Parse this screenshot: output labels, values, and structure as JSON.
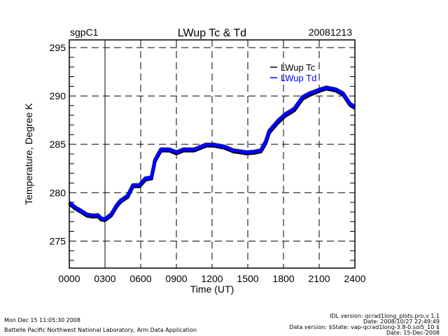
{
  "chart_data": {
    "type": "line",
    "title": "LWup Tc & Td",
    "site": "sgpC1",
    "date": "20081213",
    "xlabel": "Time (UT)",
    "ylabel": "Temperature, Degree K",
    "xlim": [
      0,
      24
    ],
    "ylim": [
      272.2,
      295.8
    ],
    "x_ticks": [
      0,
      3,
      6,
      9,
      12,
      15,
      18,
      21,
      24
    ],
    "x_tick_labels": [
      "0000",
      "0300",
      "0600",
      "0900",
      "1200",
      "1500",
      "1800",
      "2100",
      "2400"
    ],
    "y_ticks": [
      275,
      280,
      285,
      290,
      295
    ],
    "y_tick_labels": [
      "275",
      "280",
      "285",
      "290",
      "295"
    ],
    "grid": true,
    "legend_position": "top-right",
    "series": [
      {
        "name": "LWup Tc",
        "color": "#000000",
        "x": [
          0,
          0.5,
          1,
          1.5,
          2,
          2.4,
          2.7,
          3,
          3.5,
          4,
          4.3,
          4.9,
          5.35,
          5.9,
          6.4,
          6.9,
          7.2,
          7.7,
          8.4,
          9,
          9.6,
          10.5,
          11.5,
          12.1,
          13,
          13.8,
          14.9,
          15.5,
          16.1,
          16.5,
          16.8,
          17.5,
          18.1,
          18.9,
          19.6,
          20.2,
          21.1,
          21.6,
          22.4,
          23,
          23.6,
          24
        ],
        "values": [
          278.85,
          278.35,
          278.0,
          277.6,
          277.5,
          277.55,
          277.2,
          277.15,
          277.6,
          278.6,
          279.05,
          279.55,
          280.65,
          280.65,
          281.35,
          281.45,
          283.25,
          284.35,
          284.35,
          284.05,
          284.35,
          284.35,
          284.85,
          284.85,
          284.65,
          284.25,
          284.05,
          284.1,
          284.25,
          285.1,
          286.2,
          287.2,
          287.9,
          288.5,
          289.7,
          290.1,
          290.55,
          290.75,
          290.55,
          290.15,
          289.05,
          288.75
        ]
      },
      {
        "name": "LWup Td",
        "color": "#0000ff",
        "x": [
          0,
          0.5,
          1,
          1.5,
          2,
          2.4,
          2.7,
          3,
          3.5,
          4,
          4.3,
          4.9,
          5.35,
          5.9,
          6.4,
          6.9,
          7.2,
          7.7,
          8.4,
          9,
          9.6,
          10.5,
          11.5,
          12.1,
          13,
          13.8,
          14.9,
          15.5,
          16.1,
          16.5,
          16.8,
          17.5,
          18.1,
          18.9,
          19.6,
          20.2,
          21.1,
          21.6,
          22.4,
          23,
          23.6,
          24
        ],
        "values": [
          279.0,
          278.5,
          278.15,
          277.75,
          277.65,
          277.7,
          277.35,
          277.3,
          277.75,
          278.75,
          279.2,
          279.7,
          280.8,
          280.8,
          281.5,
          281.6,
          283.4,
          284.5,
          284.5,
          284.2,
          284.5,
          284.5,
          285.0,
          285.0,
          284.8,
          284.4,
          284.2,
          284.25,
          284.4,
          285.3,
          286.4,
          287.4,
          288.1,
          288.7,
          289.9,
          290.3,
          290.7,
          290.9,
          290.7,
          290.3,
          289.2,
          288.9
        ]
      }
    ]
  },
  "footer": {
    "run_time": "Mon Dec 15 11:05:30 2008",
    "organization": "Battelle Pacific Northwest National Laboratory, Arm Data Application",
    "idl_version": "IDL version: qcrad1long_plots.pro,v 1.1",
    "idl_date": "Date: 2008/10/27 22:49:49",
    "data_version": "Data version: $State: vap-qcrad1long-3.8-0.sol5_10 $",
    "data_date": "Date: 15-Dec-2008"
  }
}
